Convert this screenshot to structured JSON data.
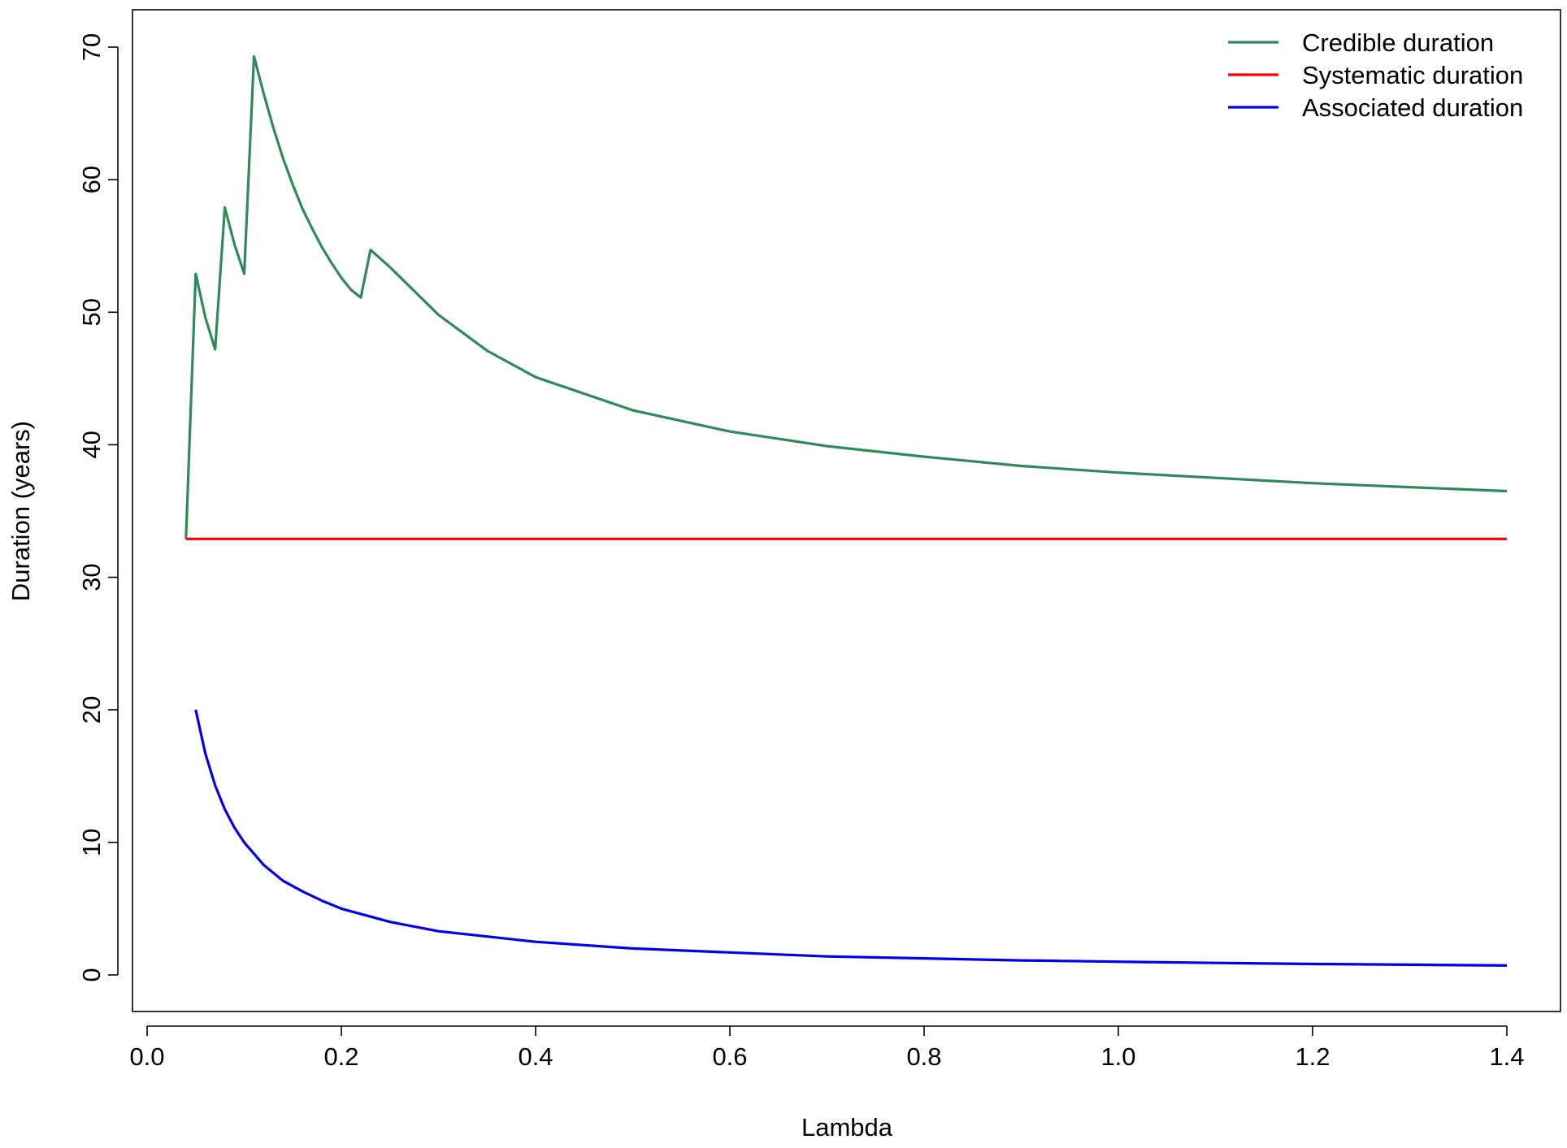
{
  "chart_data": {
    "type": "line",
    "title": "",
    "xlabel": "Lambda",
    "ylabel": "Duration (years)",
    "xlim": [
      0.0,
      1.4
    ],
    "ylim": [
      0,
      70
    ],
    "xticks": [
      "0.0",
      "0.2",
      "0.4",
      "0.6",
      "0.8",
      "1.0",
      "1.2",
      "1.4"
    ],
    "yticks": [
      "0",
      "10",
      "20",
      "30",
      "40",
      "50",
      "60",
      "70"
    ],
    "grid": false,
    "legend_position": "top-right",
    "series": [
      {
        "name": "Credible duration",
        "color": "#2e8b57",
        "x": [
          0.04,
          0.05,
          0.06,
          0.07,
          0.08,
          0.09,
          0.1,
          0.11,
          0.12,
          0.13,
          0.14,
          0.15,
          0.16,
          0.17,
          0.18,
          0.19,
          0.2,
          0.21,
          0.22,
          0.23,
          0.25,
          0.3,
          0.35,
          0.4,
          0.5,
          0.6,
          0.7,
          0.8,
          0.9,
          1.0,
          1.1,
          1.2,
          1.3,
          1.4
        ],
        "y": [
          32.9,
          52.9,
          49.6,
          47.2,
          57.9,
          55.1,
          52.9,
          69.3,
          66.5,
          63.9,
          61.6,
          59.6,
          57.8,
          56.3,
          54.9,
          53.7,
          52.6,
          51.7,
          51.1,
          54.7,
          53.4,
          49.8,
          47.1,
          45.1,
          42.6,
          41.0,
          39.9,
          39.1,
          38.4,
          37.9,
          37.5,
          37.1,
          36.8,
          36.5
        ]
      },
      {
        "name": "Systematic duration",
        "color": "#ff0000",
        "x": [
          0.04,
          1.4
        ],
        "y": [
          32.9,
          32.9
        ]
      },
      {
        "name": "Associated duration",
        "color": "#0000ee",
        "x": [
          0.05,
          0.06,
          0.07,
          0.08,
          0.09,
          0.1,
          0.12,
          0.14,
          0.16,
          0.18,
          0.2,
          0.25,
          0.3,
          0.35,
          0.4,
          0.5,
          0.6,
          0.7,
          0.8,
          0.9,
          1.0,
          1.1,
          1.2,
          1.3,
          1.4
        ],
        "y": [
          20.0,
          16.7,
          14.3,
          12.5,
          11.1,
          10.0,
          8.3,
          7.1,
          6.3,
          5.6,
          5.0,
          4.0,
          3.3,
          2.9,
          2.5,
          2.0,
          1.7,
          1.4,
          1.25,
          1.1,
          1.0,
          0.91,
          0.83,
          0.77,
          0.71
        ]
      }
    ]
  }
}
